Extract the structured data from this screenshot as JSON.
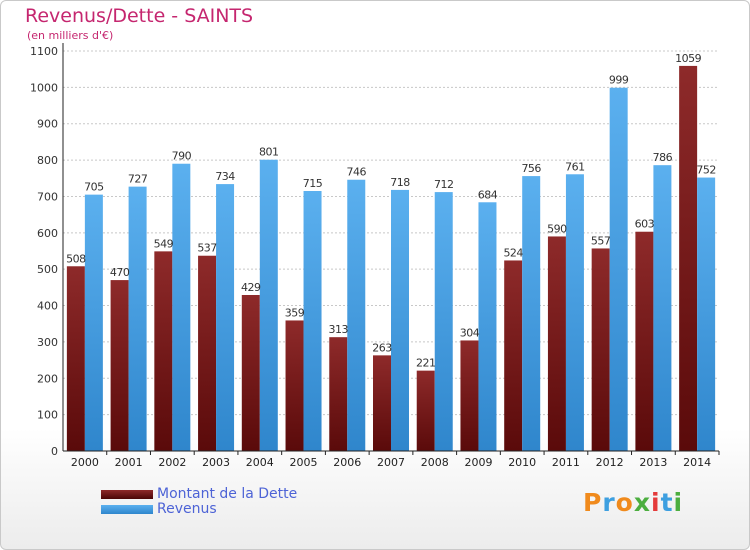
{
  "chart_data": {
    "type": "bar",
    "title": "Revenus/Dette - SAINTS",
    "subtitle": "(en milliers d'€)",
    "categories": [
      "2000",
      "2001",
      "2002",
      "2003",
      "2004",
      "2005",
      "2006",
      "2007",
      "2008",
      "2009",
      "2010",
      "2011",
      "2012",
      "2013",
      "2014"
    ],
    "series": [
      {
        "name": "Montant de la Dette",
        "color": "#7a1c1c",
        "values": [
          508,
          470,
          549,
          537,
          429,
          359,
          313,
          263,
          221,
          304,
          524,
          590,
          557,
          603,
          1059
        ]
      },
      {
        "name": "Revenus",
        "color": "#4aa3e6",
        "values": [
          705,
          727,
          790,
          734,
          801,
          715,
          746,
          718,
          712,
          684,
          756,
          761,
          999,
          786,
          752
        ]
      }
    ],
    "yticks": [
      0,
      100,
      200,
      300,
      400,
      500,
      600,
      700,
      800,
      900,
      1000,
      1100
    ],
    "ylim": [
      0,
      1100
    ],
    "grid": true,
    "legend": "bottom-left"
  },
  "logo": {
    "letters": [
      "P",
      "r",
      "o",
      "x",
      "i",
      "t",
      "i"
    ],
    "colors": [
      "#f08a1c",
      "#3d9fe0",
      "#f08a1c",
      "#4cae3f",
      "#e43a3a",
      "#3d9fe0",
      "#4cae3f"
    ]
  }
}
